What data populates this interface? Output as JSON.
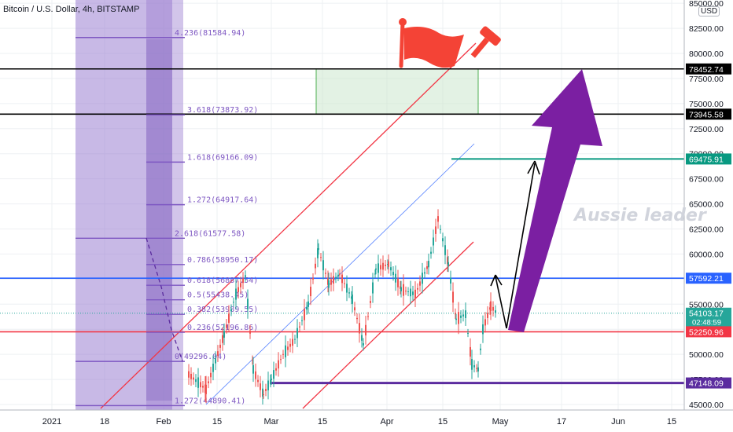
{
  "header": {
    "title": "Bitcoin / U.S. Dollar, 4h, BITSTAMP",
    "currency": "USD"
  },
  "watermark": "Aussie leader",
  "colors": {
    "fib": "#7e57c2",
    "redline": "#f23645",
    "blueline": "#2962ff",
    "arrow": "#7b1fa2",
    "teal": "#089981",
    "up": "#26a69a",
    "down": "#ef5350"
  },
  "chart_data": {
    "type": "candlestick",
    "x_ticks": [
      "2021",
      "18",
      "Feb",
      "15",
      "Mar",
      "15",
      "Apr",
      "15",
      "May",
      "17",
      "Jun",
      "15"
    ],
    "y_ticks": [
      "85000.00",
      "82500.00",
      "80000.00",
      "77500.00",
      "75000.00",
      "72500.00",
      "70000.00",
      "67500.00",
      "65000.00",
      "62500.00",
      "60000.00",
      "57500.00",
      "55000.00",
      "52500.00",
      "50000.00",
      "47500.00",
      "45000.00"
    ],
    "ylim": [
      44000,
      85500
    ],
    "price_labels": [
      {
        "label": "78452.74",
        "value": 78452.74,
        "color": "#000000"
      },
      {
        "label": "73945.58",
        "value": 73945.58,
        "color": "#000000"
      },
      {
        "label": "69475.91",
        "value": 69475.91,
        "color": "#089981"
      },
      {
        "label": "57592.21",
        "value": 57592.21,
        "color": "#2962ff"
      },
      {
        "label": "54103.17",
        "value": 54103.17,
        "color": "#26a69a",
        "sub": "02:48:59"
      },
      {
        "label": "52250.96",
        "value": 52250.96,
        "color": "#f23645"
      },
      {
        "label": "47148.09",
        "value": 47148.09,
        "color": "#5b2c9f"
      }
    ],
    "fib_levels": [
      {
        "label": "4.236(81584.94)",
        "value": 81584.94
      },
      {
        "label": "3.618(73873.92)",
        "value": 73873.92
      },
      {
        "label": "1.618(69166.09)",
        "value": 69166.09
      },
      {
        "label": "1.272(64917.64)",
        "value": 64917.64
      },
      {
        "label": "2.618(61577.58)",
        "value": 61577.58
      },
      {
        "label": "0.786(58950.17)",
        "value": 58950.17
      },
      {
        "label": "0.618(56887.54)",
        "value": 56887.54
      },
      {
        "label": "0.5(55438.45)",
        "value": 55438.45
      },
      {
        "label": "0.382(53989.55)",
        "value": 53989.55
      },
      {
        "label": "0.236(52196.86)",
        "value": 52196.86
      },
      {
        "label": "0(49296.04)",
        "value": 49296.04
      },
      {
        "label": "1.272(44890.41)",
        "value": 44890.41
      }
    ]
  }
}
